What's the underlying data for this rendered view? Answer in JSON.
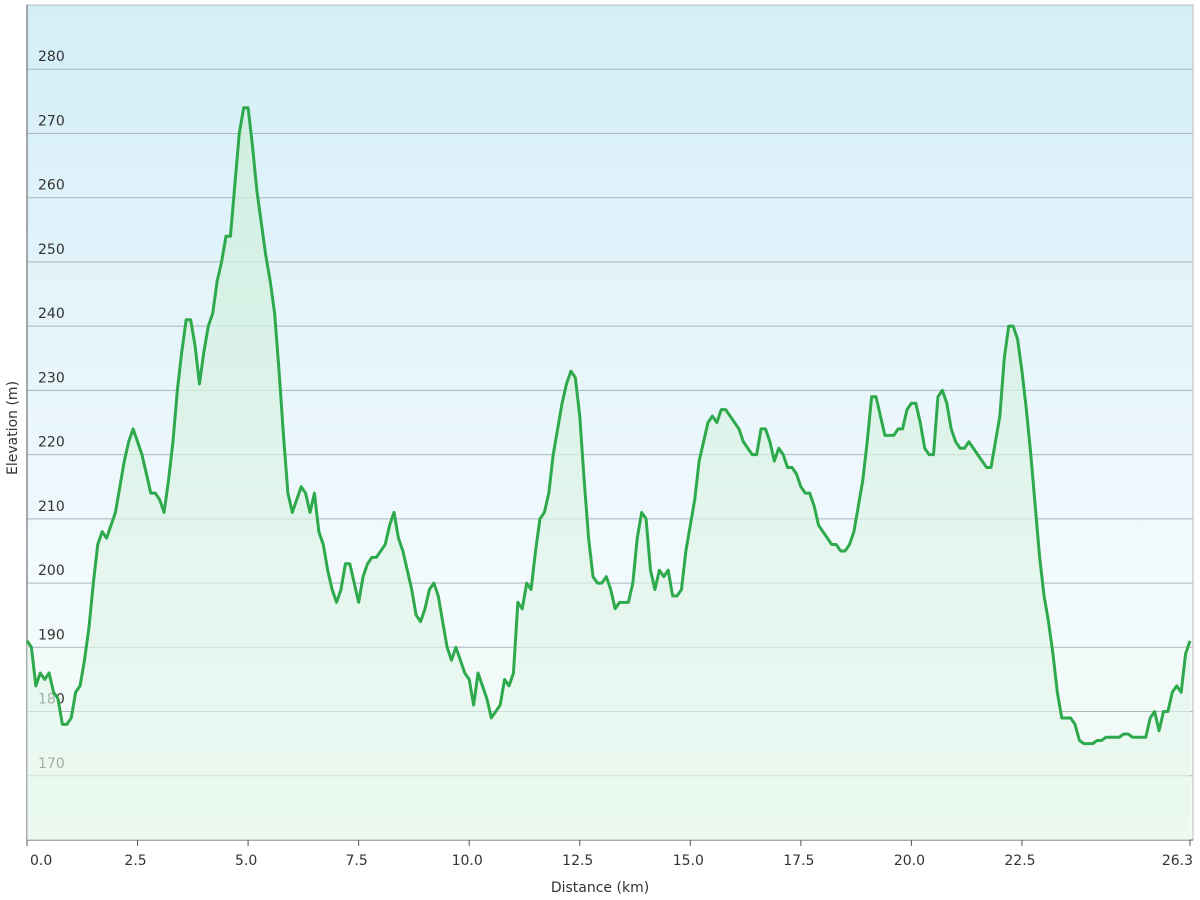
{
  "chart_data": {
    "type": "line",
    "x_label": "Distance (km)",
    "y_label": "Elevation (m)",
    "xlim": [
      0,
      26.3
    ],
    "ylim": [
      160,
      290
    ],
    "xticks": [
      {
        "value": 0,
        "label": "0.0"
      },
      2.5,
      {
        "value": 5,
        "label": "5.0"
      },
      7.5,
      {
        "value": 10,
        "label": "10.0"
      },
      12.5,
      {
        "value": 15,
        "label": "15.0"
      },
      17.5,
      {
        "value": 20,
        "label": "20.0"
      },
      22.5,
      26.3
    ],
    "yticks": [
      170,
      180,
      190,
      200,
      210,
      220,
      230,
      240,
      250,
      260,
      270,
      280
    ],
    "grid": true,
    "x": [
      0,
      0.1,
      0.2,
      0.3,
      0.4,
      0.5,
      0.6,
      0.7,
      0.8,
      0.9,
      1,
      1.1,
      1.2,
      1.3,
      1.4,
      1.5,
      1.6,
      1.7,
      1.8,
      1.9,
      2,
      2.1,
      2.2,
      2.3,
      2.4,
      2.5,
      2.6,
      2.7,
      2.8,
      2.9,
      3,
      3.1,
      3.2,
      3.3,
      3.4,
      3.5,
      3.6,
      3.7,
      3.8,
      3.9,
      4,
      4.1,
      4.2,
      4.3,
      4.4,
      4.5,
      4.6,
      4.7,
      4.8,
      4.9,
      5,
      5.1,
      5.2,
      5.3,
      5.4,
      5.5,
      5.6,
      5.7,
      5.8,
      5.9,
      6,
      6.1,
      6.2,
      6.3,
      6.4,
      6.5,
      6.6,
      6.7,
      6.8,
      6.9,
      7,
      7.1,
      7.2,
      7.3,
      7.4,
      7.5,
      7.6,
      7.7,
      7.8,
      7.9,
      8,
      8.1,
      8.2,
      8.3,
      8.4,
      8.5,
      8.6,
      8.7,
      8.8,
      8.9,
      9,
      9.1,
      9.2,
      9.3,
      9.4,
      9.5,
      9.6,
      9.7,
      9.8,
      9.9,
      10,
      10.1,
      10.2,
      10.3,
      10.4,
      10.5,
      10.6,
      10.7,
      10.8,
      10.9,
      11,
      11.1,
      11.2,
      11.3,
      11.4,
      11.5,
      11.6,
      11.7,
      11.8,
      11.9,
      12,
      12.1,
      12.2,
      12.3,
      12.4,
      12.5,
      12.6,
      12.7,
      12.8,
      12.9,
      13,
      13.1,
      13.2,
      13.3,
      13.4,
      13.5,
      13.6,
      13.7,
      13.8,
      13.9,
      14,
      14.1,
      14.2,
      14.3,
      14.4,
      14.5,
      14.6,
      14.7,
      14.8,
      14.9,
      15,
      15.1,
      15.2,
      15.3,
      15.4,
      15.5,
      15.6,
      15.7,
      15.8,
      15.9,
      16,
      16.1,
      16.2,
      16.3,
      16.4,
      16.5,
      16.6,
      16.7,
      16.8,
      16.9,
      17,
      17.1,
      17.2,
      17.3,
      17.4,
      17.5,
      17.6,
      17.7,
      17.8,
      17.9,
      18,
      18.1,
      18.2,
      18.3,
      18.4,
      18.5,
      18.6,
      18.7,
      18.8,
      18.9,
      19,
      19.1,
      19.2,
      19.3,
      19.4,
      19.5,
      19.6,
      19.7,
      19.8,
      19.9,
      20,
      20.1,
      20.2,
      20.3,
      20.4,
      20.5,
      20.6,
      20.7,
      20.8,
      20.9,
      21,
      21.1,
      21.2,
      21.3,
      21.4,
      21.5,
      21.6,
      21.7,
      21.8,
      21.9,
      22,
      22.1,
      22.2,
      22.3,
      22.4,
      22.5,
      22.6,
      22.7,
      22.8,
      22.9,
      23,
      23.1,
      23.2,
      23.3,
      23.4,
      23.5,
      23.6,
      23.7,
      23.8,
      23.9,
      24,
      24.1,
      24.2,
      24.3,
      24.4,
      24.5,
      24.6,
      24.7,
      24.8,
      24.9,
      25,
      25.1,
      25.2,
      25.3,
      25.4,
      25.5,
      25.6,
      25.7,
      25.8,
      25.9,
      26,
      26.1,
      26.2,
      26.3
    ],
    "series": [
      {
        "color": "#2eaa4c",
        "values": [
          191,
          190,
          184,
          186,
          185,
          186,
          183,
          182,
          178,
          178,
          179,
          183,
          184,
          188,
          193,
          200,
          206,
          208,
          207,
          209,
          211,
          215,
          219,
          222,
          224,
          222,
          220,
          217,
          214,
          214,
          213,
          211,
          216,
          222,
          230,
          236,
          241,
          241,
          237,
          231,
          236,
          240,
          242,
          247,
          250,
          254,
          254,
          262,
          270,
          274,
          274,
          268,
          261,
          256,
          251,
          247,
          242,
          233,
          223,
          214,
          211,
          213,
          215,
          214,
          211,
          214,
          208,
          206,
          202,
          199,
          197,
          199,
          203,
          203,
          200,
          197,
          201,
          203,
          204,
          204,
          205,
          206,
          209,
          211,
          207,
          205,
          202,
          199,
          195,
          194,
          196,
          199,
          200,
          198,
          194,
          190,
          188,
          190,
          188,
          186,
          185,
          181,
          186,
          184,
          182,
          179,
          180,
          181,
          185,
          184,
          186,
          197,
          196,
          200,
          199,
          205,
          210,
          211,
          214,
          220,
          224,
          228,
          231,
          233,
          232,
          226,
          216,
          207,
          201,
          200,
          200,
          201,
          199,
          196,
          197,
          197,
          197,
          200,
          207,
          211,
          210,
          202,
          199,
          202,
          201,
          202,
          198,
          198,
          199,
          205,
          209,
          213,
          219,
          222,
          225,
          226,
          225,
          227,
          227,
          226,
          225,
          224,
          222,
          221,
          220,
          220,
          224,
          224,
          222,
          219,
          221,
          220,
          218,
          218,
          217,
          215,
          214,
          214,
          212,
          209,
          208,
          207,
          206,
          206,
          205,
          205,
          206,
          208,
          212,
          216,
          222,
          229,
          229,
          226,
          223,
          223,
          223,
          224,
          224,
          227,
          228,
          228,
          225,
          221,
          220,
          220,
          229,
          230,
          228,
          224,
          222,
          221,
          221,
          222,
          221,
          220,
          219,
          218,
          218,
          222,
          226,
          235,
          240,
          240,
          238,
          233,
          227,
          220,
          212,
          204,
          198,
          194,
          189,
          183,
          179,
          179,
          179,
          178,
          175.5,
          175,
          175,
          175,
          175.5,
          175.5,
          176,
          176,
          176,
          176,
          176.5,
          176.5,
          176,
          176,
          176,
          176,
          179,
          180,
          177,
          180,
          180,
          183,
          184,
          183,
          189,
          191
        ]
      }
    ]
  }
}
